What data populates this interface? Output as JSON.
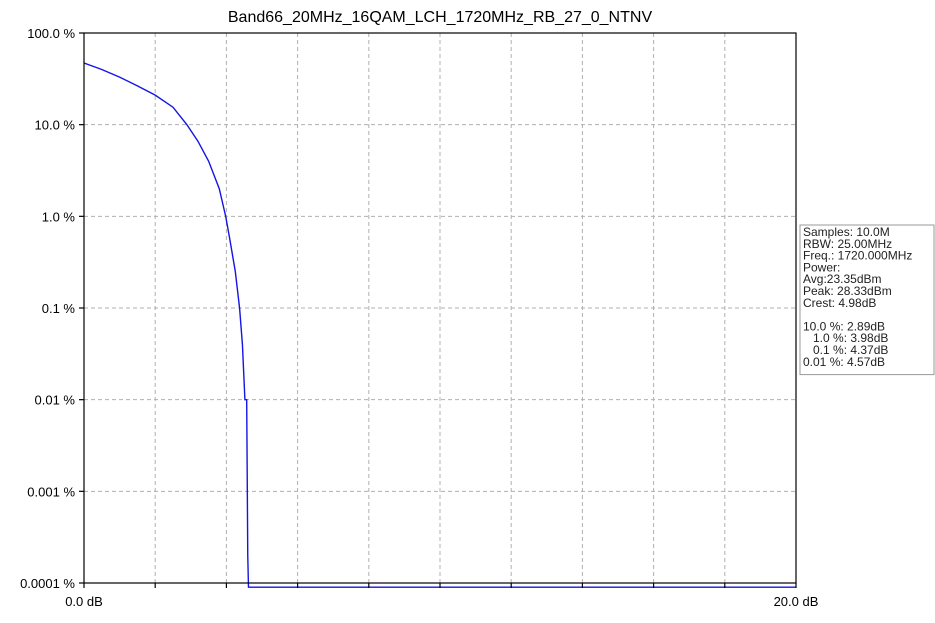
{
  "chart_data": {
    "type": "line",
    "title": "Band66_20MHz_16QAM_LCH_1720MHz_RB_27_0_NTNV",
    "xlabel": "",
    "ylabel": "",
    "x_scale": "linear",
    "y_scale": "log",
    "xlim": [
      0,
      20
    ],
    "ylim": [
      0.0001,
      100
    ],
    "x_tick_labels": [
      {
        "value": 0,
        "label": "0.0 dB"
      },
      {
        "value": 20,
        "label": "20.0 dB"
      }
    ],
    "x_minor_ticks": [
      2,
      4,
      6,
      8,
      10,
      12,
      14,
      16,
      18
    ],
    "y_ticks": [
      {
        "value": 100,
        "label": "100.0 %"
      },
      {
        "value": 10,
        "label": "10.0 %"
      },
      {
        "value": 1,
        "label": "1.0 %"
      },
      {
        "value": 0.1,
        "label": "0.1 %"
      },
      {
        "value": 0.01,
        "label": "0.01 %"
      },
      {
        "value": 0.001,
        "label": "0.001 %"
      },
      {
        "value": 0.0001,
        "label": "0.0001 %"
      }
    ],
    "grid": true,
    "legend": "none",
    "series": [
      {
        "color": "#1414e6",
        "x": [
          0.0,
          0.5,
          1.0,
          1.5,
          2.0,
          2.5,
          2.89,
          3.2,
          3.5,
          3.8,
          3.98,
          4.1,
          4.25,
          4.37,
          4.45,
          4.52,
          4.57,
          4.6,
          4.62,
          20.0
        ],
        "y": [
          47,
          40,
          33,
          26.5,
          21,
          15.5,
          10,
          6.6,
          4.0,
          2.0,
          1.0,
          0.55,
          0.25,
          0.1,
          0.04,
          0.01,
          0.01,
          0.0002,
          9e-05,
          9e-05
        ]
      }
    ]
  },
  "info_box": {
    "lines": [
      "Samples: 10.0M",
      "RBW: 25.00MHz",
      "Freq.: 1720.000MHz",
      "Power:",
      "Avg:23.35dBm",
      "Peak: 28.33dBm",
      "Crest: 4.98dB",
      "",
      "10.0 %: 2.89dB",
      "   1.0 %: 3.98dB",
      "   0.1 %: 4.37dB",
      "0.01 %: 4.57dB"
    ]
  }
}
